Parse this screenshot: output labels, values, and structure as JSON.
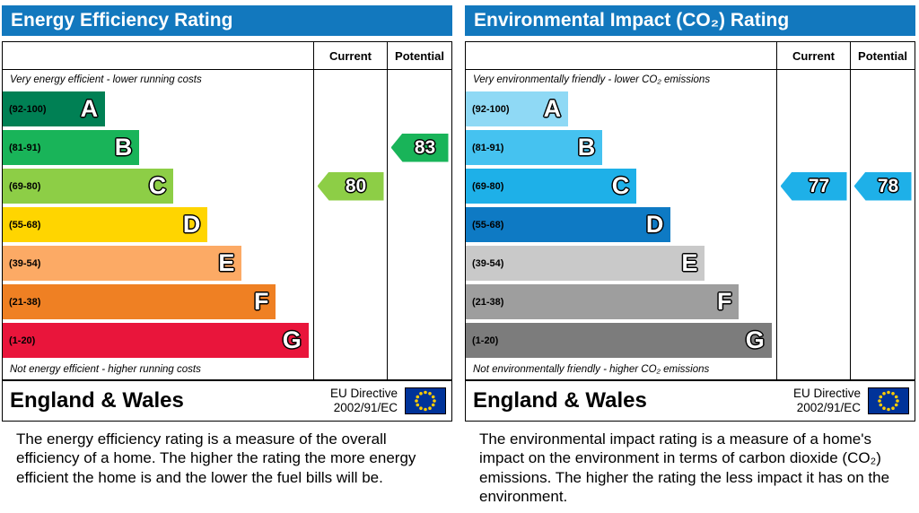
{
  "colors": {
    "header_bg": "#1278be",
    "flag_bg": "#003399",
    "flag_star": "#ffcc00"
  },
  "panels": [
    {
      "title": "Energy Efficiency Rating",
      "header": {
        "current": "Current",
        "potential": "Potential"
      },
      "top_caption": "Very energy efficient - lower running costs",
      "bottom_caption": "Not energy efficient - higher running costs",
      "bands": [
        {
          "letter": "A",
          "range": "(92-100)",
          "min": 92,
          "max": 100,
          "color": "#008054",
          "width_pct": 33
        },
        {
          "letter": "B",
          "range": "(81-91)",
          "min": 81,
          "max": 91,
          "color": "#19b459",
          "width_pct": 44
        },
        {
          "letter": "C",
          "range": "(69-80)",
          "min": 69,
          "max": 80,
          "color": "#8dce46",
          "width_pct": 55
        },
        {
          "letter": "D",
          "range": "(55-68)",
          "min": 55,
          "max": 68,
          "color": "#ffd500",
          "width_pct": 66
        },
        {
          "letter": "E",
          "range": "(39-54)",
          "min": 39,
          "max": 54,
          "color": "#fcaa65",
          "width_pct": 77
        },
        {
          "letter": "F",
          "range": "(21-38)",
          "min": 21,
          "max": 38,
          "color": "#ef8023",
          "width_pct": 88
        },
        {
          "letter": "G",
          "range": "(1-20)",
          "min": 1,
          "max": 20,
          "color": "#e9153b",
          "width_pct": 98.5
        }
      ],
      "current": {
        "value": 80,
        "color": "#8dce46"
      },
      "potential": {
        "value": 83,
        "color": "#19b459"
      },
      "footer": {
        "region": "England & Wales",
        "directive": [
          "EU Directive",
          "2002/91/EC"
        ]
      },
      "description": "The energy efficiency rating is a measure of the overall efficiency of a home. The higher the rating the more energy efficient the home is and the lower the fuel bills will be."
    },
    {
      "title": "Environmental Impact (CO₂) Rating",
      "header": {
        "current": "Current",
        "potential": "Potential"
      },
      "top_caption": "Very environmentally friendly - lower CO₂ emissions",
      "bottom_caption": "Not environmentally friendly - higher CO₂ emissions",
      "bands": [
        {
          "letter": "A",
          "range": "(92-100)",
          "min": 92,
          "max": 100,
          "color": "#8fd9f5",
          "width_pct": 33
        },
        {
          "letter": "B",
          "range": "(81-91)",
          "min": 81,
          "max": 91,
          "color": "#45c2f0",
          "width_pct": 44
        },
        {
          "letter": "C",
          "range": "(69-80)",
          "min": 69,
          "max": 80,
          "color": "#1eb0e8",
          "width_pct": 55
        },
        {
          "letter": "D",
          "range": "(55-68)",
          "min": 55,
          "max": 68,
          "color": "#0e7ac4",
          "width_pct": 66
        },
        {
          "letter": "E",
          "range": "(39-54)",
          "min": 39,
          "max": 54,
          "color": "#c9c9c9",
          "width_pct": 77
        },
        {
          "letter": "F",
          "range": "(21-38)",
          "min": 21,
          "max": 38,
          "color": "#9e9e9e",
          "width_pct": 88
        },
        {
          "letter": "G",
          "range": "(1-20)",
          "min": 1,
          "max": 20,
          "color": "#7c7c7c",
          "width_pct": 98.5
        }
      ],
      "current": {
        "value": 77,
        "color": "#1eb0e8"
      },
      "potential": {
        "value": 78,
        "color": "#1eb0e8"
      },
      "footer": {
        "region": "England & Wales",
        "directive": [
          "EU Directive",
          "2002/91/EC"
        ]
      },
      "description": "The environmental impact rating is a measure of a home's impact on the environment in terms of carbon dioxide (CO₂) emissions. The higher the rating the less impact it has on the environment."
    }
  ],
  "chart_data": [
    {
      "type": "bar",
      "title": "Energy Efficiency Rating",
      "categories": [
        "A (92-100)",
        "B (81-91)",
        "C (69-80)",
        "D (55-68)",
        "E (39-54)",
        "F (21-38)",
        "G (1-20)"
      ],
      "series": [
        {
          "name": "Current",
          "values": [
            80
          ],
          "band": "C"
        },
        {
          "name": "Potential",
          "values": [
            83
          ],
          "band": "B"
        }
      ],
      "annotations": [
        "Very energy efficient - lower running costs",
        "Not energy efficient - higher running costs",
        "England & Wales",
        "EU Directive 2002/91/EC"
      ],
      "xlabel": "",
      "ylabel": "",
      "ylim": [
        1,
        100
      ],
      "legend_position": "top-right-columns"
    },
    {
      "type": "bar",
      "title": "Environmental Impact (CO₂) Rating",
      "categories": [
        "A (92-100)",
        "B (81-91)",
        "C (69-80)",
        "D (55-68)",
        "E (39-54)",
        "F (21-38)",
        "G (1-20)"
      ],
      "series": [
        {
          "name": "Current",
          "values": [
            77
          ],
          "band": "C"
        },
        {
          "name": "Potential",
          "values": [
            78
          ],
          "band": "C"
        }
      ],
      "annotations": [
        "Very environmentally friendly - lower CO₂ emissions",
        "Not environmentally friendly - higher CO₂ emissions",
        "England & Wales",
        "EU Directive 2002/91/EC"
      ],
      "xlabel": "",
      "ylabel": "",
      "ylim": [
        1,
        100
      ],
      "legend_position": "top-right-columns"
    }
  ]
}
